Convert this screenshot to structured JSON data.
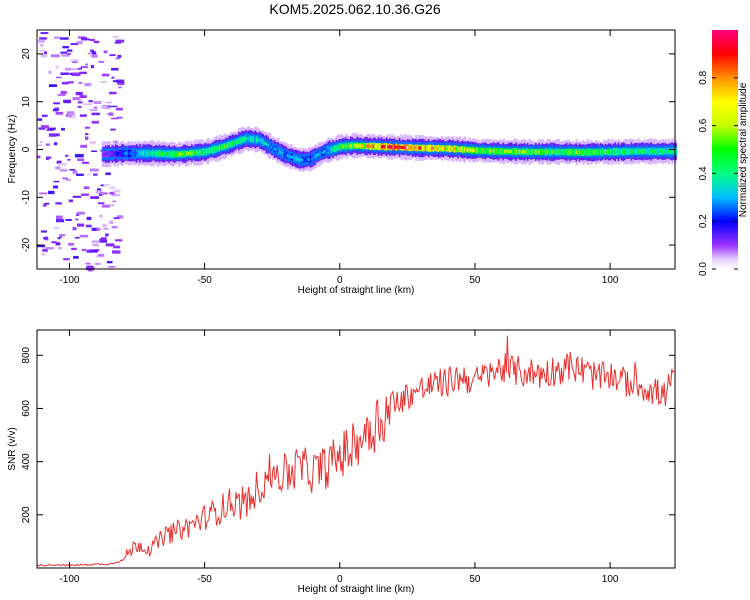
{
  "title": "KOM5.2025.062.10.36.G26",
  "chart_data": [
    {
      "type": "heatmap",
      "xlabel": "Height of straight line (km)",
      "ylabel": "Frequency (Hz)",
      "xlim": [
        -112,
        124
      ],
      "ylim": [
        -25,
        25
      ],
      "xticks": [
        -100,
        -50,
        0,
        50,
        100
      ],
      "yticks": [
        -20,
        -10,
        0,
        10,
        20
      ],
      "colorbar": {
        "label": "Normalized spectral amplitude",
        "range": [
          0,
          1
        ],
        "ticks": [
          "0.0",
          "0.2",
          "0.4",
          "0.6",
          "0.8"
        ],
        "tick_values": [
          0.0,
          0.2,
          0.4,
          0.6,
          0.8
        ],
        "colormap": "rainbow: white, violet, blue, cyan, green, yellow, orange, red, magenta"
      },
      "ridge": {
        "description": "Dominant frequency track (center frequency and amplitude vs height)",
        "x": [
          -88,
          -80,
          -70,
          -60,
          -50,
          -42,
          -35,
          -30,
          -25,
          -20,
          -15,
          -11,
          -8,
          -5,
          -2,
          0,
          5,
          10,
          20,
          30,
          40,
          50,
          60,
          70,
          80,
          90,
          100,
          110,
          124
        ],
        "freq": [
          -1.0,
          -0.8,
          -0.8,
          -1.0,
          -0.5,
          0.8,
          2.3,
          2.0,
          0.3,
          -1.2,
          -2.2,
          -2.0,
          -1.0,
          -0.2,
          0.2,
          0.6,
          0.8,
          0.7,
          0.5,
          0.3,
          0.2,
          -0.2,
          -0.4,
          -0.5,
          -0.5,
          -0.6,
          -0.5,
          -0.4,
          -0.4
        ],
        "amplitude": [
          0.1,
          0.25,
          0.4,
          0.55,
          0.45,
          0.5,
          0.4,
          0.35,
          0.3,
          0.3,
          0.3,
          0.25,
          0.3,
          0.3,
          0.4,
          0.5,
          0.55,
          0.7,
          0.9,
          0.8,
          0.7,
          0.6,
          0.55,
          0.55,
          0.5,
          0.55,
          0.45,
          0.45,
          0.4
        ]
      }
    },
    {
      "type": "line",
      "xlabel": "Height of straight line (km)",
      "ylabel": "SNR (v/v)",
      "xlim": [
        -112,
        124
      ],
      "ylim": [
        0,
        895
      ],
      "xticks": [
        -100,
        -50,
        0,
        50,
        100
      ],
      "yticks": [
        200,
        400,
        600,
        800
      ],
      "color": "#e8312f",
      "series": [
        {
          "x": [
            -112,
            -105,
            -100,
            -95,
            -90,
            -85,
            -80,
            -78,
            -75,
            -70,
            -65,
            -60,
            -55,
            -50,
            -45,
            -40,
            -35,
            -32,
            -30,
            -25,
            -20,
            -15,
            -10,
            -5,
            0,
            5,
            10,
            15,
            20,
            25,
            30,
            35,
            40,
            45,
            50,
            55,
            60,
            65,
            70,
            75,
            80,
            85,
            90,
            95,
            98,
            100,
            105,
            110,
            115,
            120,
            124
          ],
          "y": [
            10,
            12,
            10,
            12,
            14,
            15,
            30,
            60,
            90,
            70,
            120,
            140,
            160,
            190,
            215,
            250,
            230,
            280,
            310,
            360,
            350,
            380,
            360,
            380,
            420,
            455,
            520,
            560,
            610,
            650,
            670,
            690,
            700,
            720,
            700,
            730,
            750,
            740,
            735,
            730,
            745,
            760,
            740,
            720,
            715,
            730,
            700,
            690,
            670,
            650,
            720
          ]
        }
      ]
    }
  ]
}
